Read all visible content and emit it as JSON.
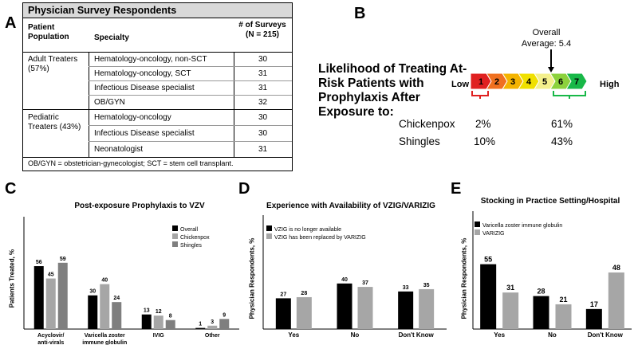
{
  "panel_letters": {
    "a": "A",
    "b": "B",
    "c": "C",
    "d": "D",
    "e": "E"
  },
  "table": {
    "title": "Physician Survey Respondents",
    "headers": {
      "population": "Patient Population",
      "specialty": "Specialty",
      "surveys": "# of Surveys (N = 215)"
    },
    "groups": [
      {
        "population": "Adult Treaters (57%)",
        "rows": [
          {
            "specialty": "Hematology-oncology, non-SCT",
            "n": "30"
          },
          {
            "specialty": "Hematology-oncology, SCT",
            "n": "31"
          },
          {
            "specialty": "Infectious Disease specialist",
            "n": "31"
          },
          {
            "specialty": "OB/GYN",
            "n": "32"
          }
        ]
      },
      {
        "population": "Pediatric Treaters (43%)",
        "rows": [
          {
            "specialty": "Hematology-oncology",
            "n": "30"
          },
          {
            "specialty": "Infectious Disease specialist",
            "n": "30"
          },
          {
            "specialty": "Neonatologist",
            "n": "31"
          }
        ]
      }
    ],
    "footnote": "OB/GYN = obstetrician-gynecologist; SCT = stem cell transplant."
  },
  "likelihood": {
    "question": "Likelihood of Treating At-Risk Patients with Prophylaxis After Exposure to:",
    "low_label": "Low",
    "high_label": "High",
    "scale": [
      "1",
      "2",
      "3",
      "4",
      "5",
      "6",
      "7"
    ],
    "scale_colors": [
      "#e02020",
      "#f07020",
      "#f4b400",
      "#f0e000",
      "#f4f08c",
      "#8cd23c",
      "#18b848"
    ],
    "overall_label": "Overall",
    "average_label": "Average: 5.4",
    "average_value": 5.4,
    "rows": [
      {
        "label": "Chickenpox",
        "low_pct": "2%",
        "high_pct": "61%"
      },
      {
        "label": "Shingles",
        "low_pct": "10%",
        "high_pct": "43%"
      }
    ]
  },
  "chart_data": [
    {
      "type": "bar",
      "title": "Post-exposure Prophylaxis to VZV",
      "ylabel": "Patients Treated, %",
      "categories": [
        "Acyclovir/\nanti-virals",
        "Varicella zoster\nimmune globulin",
        "IVIG",
        "Other"
      ],
      "series": [
        {
          "name": "Overall",
          "color": "#000000",
          "values": [
            56,
            30,
            13,
            1
          ]
        },
        {
          "name": "Chickenpox",
          "color": "#a6a6a6",
          "values": [
            45,
            40,
            12,
            3
          ]
        },
        {
          "name": "Shingles",
          "color": "#7f7f7f",
          "values": [
            59,
            24,
            8,
            9
          ]
        }
      ],
      "ylim": [
        0,
        100
      ],
      "legend": "top-right"
    },
    {
      "type": "bar",
      "title": "Experience with Availability of  VZIG/VARIZIG",
      "ylabel": "Physician Respondents, %",
      "categories": [
        "Yes",
        "No",
        "Don't Know"
      ],
      "series": [
        {
          "name": "VZIG is no longer available",
          "color": "#000000",
          "values": [
            27,
            40,
            33
          ]
        },
        {
          "name": "VZIG has been replaced by VARIZIG",
          "color": "#a6a6a6",
          "values": [
            28,
            37,
            35
          ]
        }
      ],
      "ylim": [
        0,
        100
      ],
      "legend": "top-left"
    },
    {
      "type": "bar",
      "title": "Stocking in Practice Setting/Hospital",
      "ylabel": "Physician Respondents, %",
      "categories": [
        "Yes",
        "No",
        "Don't Know"
      ],
      "series": [
        {
          "name": "Varicella zoster immune globulin",
          "color": "#000000",
          "values": [
            55,
            28,
            17
          ]
        },
        {
          "name": "VARIZIG",
          "color": "#a6a6a6",
          "values": [
            31,
            21,
            48
          ]
        }
      ],
      "ylim": [
        0,
        100
      ],
      "legend": "top-left"
    }
  ]
}
